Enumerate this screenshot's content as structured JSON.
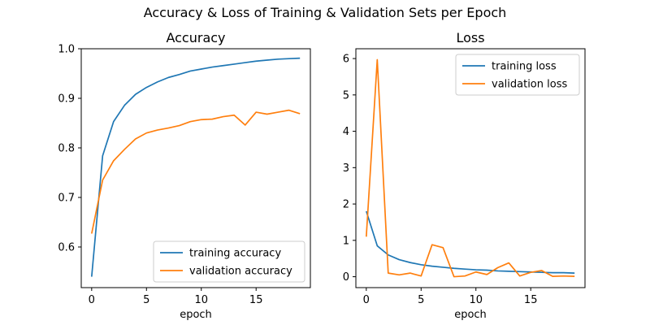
{
  "figure": {
    "suptitle": "Accuracy & Loss of Training & Validation Sets per Epoch"
  },
  "chart_data": [
    {
      "type": "line",
      "title": "Accuracy",
      "xlabel": "epoch",
      "ylabel": "",
      "xlim": [
        -0.95,
        19.95
      ],
      "ylim": [
        0.518,
        1.0
      ],
      "xticks": [
        0,
        5,
        10,
        15
      ],
      "yticks": [
        0.6,
        0.7,
        0.8,
        0.9,
        1.0
      ],
      "ytick_labels": [
        "0.6",
        "0.7",
        "0.8",
        "0.9",
        "1.0"
      ],
      "xtick_labels": [
        "0",
        "5",
        "10",
        "15"
      ],
      "grid": false,
      "legend_position": "bottom-right",
      "x": [
        0,
        1,
        2,
        3,
        4,
        5,
        6,
        7,
        8,
        9,
        10,
        11,
        12,
        13,
        14,
        15,
        16,
        17,
        18,
        19
      ],
      "series": [
        {
          "name": "training accuracy",
          "color": "#1f77b4",
          "values": [
            0.54,
            0.784,
            0.853,
            0.886,
            0.908,
            0.922,
            0.933,
            0.942,
            0.948,
            0.955,
            0.959,
            0.963,
            0.966,
            0.969,
            0.972,
            0.975,
            0.977,
            0.979,
            0.98,
            0.981
          ]
        },
        {
          "name": "validation accuracy",
          "color": "#ff7f0e",
          "values": [
            0.627,
            0.735,
            0.774,
            0.797,
            0.818,
            0.83,
            0.836,
            0.84,
            0.845,
            0.853,
            0.857,
            0.858,
            0.863,
            0.866,
            0.846,
            0.872,
            0.868,
            0.872,
            0.876,
            0.869
          ]
        }
      ]
    },
    {
      "type": "line",
      "title": "Loss",
      "xlabel": "epoch",
      "ylabel": "",
      "xlim": [
        -0.95,
        19.95
      ],
      "ylim": [
        -0.3,
        6.27
      ],
      "xticks": [
        0,
        5,
        10,
        15
      ],
      "yticks": [
        0,
        1,
        2,
        3,
        4,
        5,
        6
      ],
      "ytick_labels": [
        "0",
        "1",
        "2",
        "3",
        "4",
        "5",
        "6"
      ],
      "xtick_labels": [
        "0",
        "5",
        "10",
        "15"
      ],
      "grid": false,
      "legend_position": "top-right",
      "x": [
        0,
        1,
        2,
        3,
        4,
        5,
        6,
        7,
        8,
        9,
        10,
        11,
        12,
        13,
        14,
        15,
        16,
        17,
        18,
        19
      ],
      "series": [
        {
          "name": "training loss",
          "color": "#1f77b4",
          "values": [
            1.8,
            0.85,
            0.6,
            0.47,
            0.39,
            0.33,
            0.29,
            0.26,
            0.23,
            0.21,
            0.19,
            0.18,
            0.16,
            0.15,
            0.14,
            0.13,
            0.12,
            0.11,
            0.11,
            0.1
          ]
        },
        {
          "name": "validation loss",
          "color": "#ff7f0e",
          "values": [
            1.1,
            5.97,
            0.1,
            0.05,
            0.1,
            0.02,
            0.88,
            0.8,
            0.0,
            0.02,
            0.13,
            0.06,
            0.25,
            0.38,
            0.02,
            0.12,
            0.17,
            0.01,
            0.02,
            0.01
          ]
        }
      ]
    }
  ]
}
